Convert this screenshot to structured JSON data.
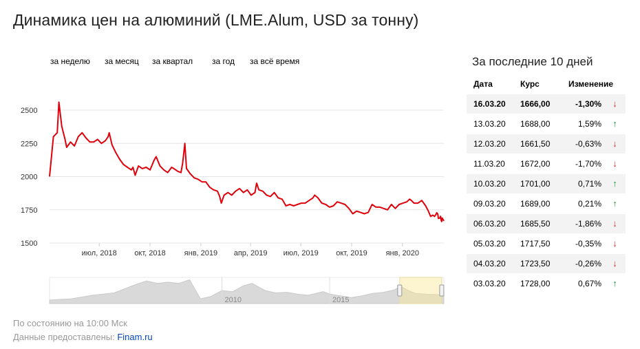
{
  "title": "Динамика цен на алюминий (LME.Alum, USD за тонну)",
  "periods": [
    "за неделю",
    "за месяц",
    "за квартал",
    "за год",
    "за всё время"
  ],
  "side": {
    "title": "За последние 10 дней",
    "headers": [
      "Дата",
      "Курс",
      "Изменение"
    ],
    "rows": [
      {
        "date": "16.03.20",
        "rate": "1666,00",
        "change": "-1,30%",
        "dir": "down"
      },
      {
        "date": "13.03.20",
        "rate": "1688,00",
        "change": "1,59%",
        "dir": "up"
      },
      {
        "date": "12.03.20",
        "rate": "1661,50",
        "change": "-0,63%",
        "dir": "down"
      },
      {
        "date": "11.03.20",
        "rate": "1672,00",
        "change": "-1,70%",
        "dir": "down"
      },
      {
        "date": "10.03.20",
        "rate": "1701,00",
        "change": "0,71%",
        "dir": "up"
      },
      {
        "date": "09.03.20",
        "rate": "1689,00",
        "change": "0,21%",
        "dir": "up"
      },
      {
        "date": "06.03.20",
        "rate": "1685,50",
        "change": "-1,86%",
        "dir": "down"
      },
      {
        "date": "05.03.20",
        "rate": "1717,50",
        "change": "-0,35%",
        "dir": "down"
      },
      {
        "date": "04.03.20",
        "rate": "1723,50",
        "change": "-0,26%",
        "dir": "down"
      },
      {
        "date": "03.03.20",
        "rate": "1728,00",
        "change": "0,67%",
        "dir": "up"
      }
    ]
  },
  "footer": {
    "status": "По состоянию на 10:00 Мск",
    "source_prefix": "Данные предоставлены:",
    "source_link": "Finam.ru"
  },
  "chart_data": {
    "type": "line",
    "series": [
      {
        "color": "#e0000a",
        "points": [
          [
            "2018-04-02",
            2000
          ],
          [
            "2018-04-09",
            2300
          ],
          [
            "2018-04-16",
            2330
          ],
          [
            "2018-04-19",
            2560
          ],
          [
            "2018-04-24",
            2380
          ],
          [
            "2018-04-30",
            2280
          ],
          [
            "2018-05-03",
            2220
          ],
          [
            "2018-05-10",
            2260
          ],
          [
            "2018-05-17",
            2230
          ],
          [
            "2018-05-24",
            2300
          ],
          [
            "2018-05-31",
            2330
          ],
          [
            "2018-06-07",
            2290
          ],
          [
            "2018-06-14",
            2260
          ],
          [
            "2018-06-21",
            2260
          ],
          [
            "2018-06-28",
            2280
          ],
          [
            "2018-07-05",
            2250
          ],
          [
            "2018-07-12",
            2270
          ],
          [
            "2018-07-17",
            2300
          ],
          [
            "2018-07-19",
            2330
          ],
          [
            "2018-07-24",
            2240
          ],
          [
            "2018-07-31",
            2180
          ],
          [
            "2018-08-07",
            2130
          ],
          [
            "2018-08-14",
            2090
          ],
          [
            "2018-08-21",
            2070
          ],
          [
            "2018-08-28",
            2050
          ],
          [
            "2018-08-31",
            2070
          ],
          [
            "2018-09-04",
            2010
          ],
          [
            "2018-09-10",
            2080
          ],
          [
            "2018-09-17",
            2060
          ],
          [
            "2018-09-24",
            2070
          ],
          [
            "2018-10-01",
            2050
          ],
          [
            "2018-10-08",
            2120
          ],
          [
            "2018-10-12",
            2150
          ],
          [
            "2018-10-19",
            2080
          ],
          [
            "2018-10-26",
            2050
          ],
          [
            "2018-11-02",
            2030
          ],
          [
            "2018-11-09",
            2070
          ],
          [
            "2018-11-13",
            2060
          ],
          [
            "2018-11-20",
            2040
          ],
          [
            "2018-11-26",
            2030
          ],
          [
            "2018-11-29",
            2100
          ],
          [
            "2018-12-03",
            2250
          ],
          [
            "2018-12-06",
            2060
          ],
          [
            "2018-12-13",
            2020
          ],
          [
            "2018-12-20",
            1990
          ],
          [
            "2018-12-27",
            1980
          ],
          [
            "2019-01-03",
            1960
          ],
          [
            "2019-01-10",
            1960
          ],
          [
            "2019-01-17",
            1920
          ],
          [
            "2019-01-24",
            1900
          ],
          [
            "2019-01-31",
            1890
          ],
          [
            "2019-02-04",
            1850
          ],
          [
            "2019-02-07",
            1800
          ],
          [
            "2019-02-12",
            1860
          ],
          [
            "2019-02-19",
            1880
          ],
          [
            "2019-02-26",
            1860
          ],
          [
            "2019-03-05",
            1890
          ],
          [
            "2019-03-12",
            1910
          ],
          [
            "2019-03-19",
            1880
          ],
          [
            "2019-03-26",
            1900
          ],
          [
            "2019-04-02",
            1860
          ],
          [
            "2019-04-09",
            1880
          ],
          [
            "2019-04-12",
            1950
          ],
          [
            "2019-04-16",
            1900
          ],
          [
            "2019-04-23",
            1890
          ],
          [
            "2019-04-30",
            1860
          ],
          [
            "2019-05-07",
            1850
          ],
          [
            "2019-05-14",
            1880
          ],
          [
            "2019-05-21",
            1840
          ],
          [
            "2019-05-28",
            1830
          ],
          [
            "2019-06-04",
            1780
          ],
          [
            "2019-06-11",
            1790
          ],
          [
            "2019-06-18",
            1780
          ],
          [
            "2019-06-25",
            1790
          ],
          [
            "2019-07-02",
            1800
          ],
          [
            "2019-07-09",
            1800
          ],
          [
            "2019-07-16",
            1820
          ],
          [
            "2019-07-23",
            1840
          ],
          [
            "2019-07-26",
            1860
          ],
          [
            "2019-08-01",
            1840
          ],
          [
            "2019-08-08",
            1800
          ],
          [
            "2019-08-15",
            1790
          ],
          [
            "2019-08-22",
            1770
          ],
          [
            "2019-08-29",
            1780
          ],
          [
            "2019-09-05",
            1810
          ],
          [
            "2019-09-12",
            1800
          ],
          [
            "2019-09-19",
            1790
          ],
          [
            "2019-09-26",
            1760
          ],
          [
            "2019-10-03",
            1720
          ],
          [
            "2019-10-10",
            1740
          ],
          [
            "2019-10-17",
            1730
          ],
          [
            "2019-10-24",
            1720
          ],
          [
            "2019-10-31",
            1730
          ],
          [
            "2019-11-07",
            1790
          ],
          [
            "2019-11-14",
            1770
          ],
          [
            "2019-11-21",
            1770
          ],
          [
            "2019-11-28",
            1760
          ],
          [
            "2019-12-05",
            1750
          ],
          [
            "2019-12-12",
            1790
          ],
          [
            "2019-12-19",
            1760
          ],
          [
            "2019-12-26",
            1790
          ],
          [
            "2020-01-02",
            1800
          ],
          [
            "2020-01-09",
            1810
          ],
          [
            "2020-01-14",
            1830
          ],
          [
            "2020-01-17",
            1820
          ],
          [
            "2020-01-22",
            1800
          ],
          [
            "2020-01-29",
            1800
          ],
          [
            "2020-02-05",
            1820
          ],
          [
            "2020-02-12",
            1780
          ],
          [
            "2020-02-17",
            1740
          ],
          [
            "2020-02-21",
            1700
          ],
          [
            "2020-02-25",
            1710
          ],
          [
            "2020-02-28",
            1700
          ],
          [
            "2020-03-02",
            1717
          ],
          [
            "2020-03-03",
            1728
          ],
          [
            "2020-03-04",
            1723
          ],
          [
            "2020-03-05",
            1717
          ],
          [
            "2020-03-06",
            1685
          ],
          [
            "2020-03-09",
            1689
          ],
          [
            "2020-03-10",
            1701
          ],
          [
            "2020-03-11",
            1672
          ],
          [
            "2020-03-12",
            1661
          ],
          [
            "2020-03-13",
            1688
          ],
          [
            "2020-03-16",
            1666
          ]
        ]
      }
    ],
    "x_ticks": [
      {
        "date": "2018-07-01",
        "label": "июл, 2018"
      },
      {
        "date": "2018-10-01",
        "label": "окт, 2018"
      },
      {
        "date": "2019-01-01",
        "label": "янв, 2019"
      },
      {
        "date": "2019-04-01",
        "label": "апр, 2019"
      },
      {
        "date": "2019-07-01",
        "label": "июл, 2019"
      },
      {
        "date": "2019-10-01",
        "label": "окт, 2019"
      },
      {
        "date": "2020-01-01",
        "label": "янв, 2020"
      }
    ],
    "xlim": [
      "2018-04-02",
      "2020-03-16"
    ],
    "y_ticks": [
      1500,
      1750,
      2000,
      2250,
      2500
    ],
    "ylim": [
      1500,
      2500
    ],
    "grid": true,
    "navigator": {
      "labels": [
        {
          "year": 2010,
          "label": "2010"
        },
        {
          "year": 2015,
          "label": "2015"
        }
      ],
      "range": [
        2002,
        2020.3
      ],
      "selected_range": [
        2018.25,
        2020.2
      ],
      "profile": [
        [
          2002,
          1300
        ],
        [
          2003,
          1400
        ],
        [
          2004,
          1700
        ],
        [
          2005,
          1900
        ],
        [
          2006,
          2600
        ],
        [
          2006.5,
          2900
        ],
        [
          2007,
          2700
        ],
        [
          2007.5,
          2800
        ],
        [
          2008,
          2700
        ],
        [
          2008.5,
          3000
        ],
        [
          2009,
          1400
        ],
        [
          2009.5,
          1600
        ],
        [
          2010,
          2100
        ],
        [
          2010.5,
          2000
        ],
        [
          2011,
          2500
        ],
        [
          2011.4,
          2700
        ],
        [
          2012,
          2100
        ],
        [
          2012.5,
          1900
        ],
        [
          2013,
          1950
        ],
        [
          2013.5,
          1800
        ],
        [
          2014,
          1700
        ],
        [
          2014.7,
          2000
        ],
        [
          2015,
          1800
        ],
        [
          2015.5,
          1650
        ],
        [
          2016,
          1500
        ],
        [
          2016.5,
          1650
        ],
        [
          2017,
          1850
        ],
        [
          2017.5,
          1950
        ],
        [
          2018,
          2150
        ],
        [
          2018.3,
          2450
        ],
        [
          2018.7,
          2050
        ],
        [
          2019,
          1850
        ],
        [
          2019.5,
          1790
        ],
        [
          2020,
          1760
        ],
        [
          2020.3,
          1666
        ]
      ]
    }
  }
}
